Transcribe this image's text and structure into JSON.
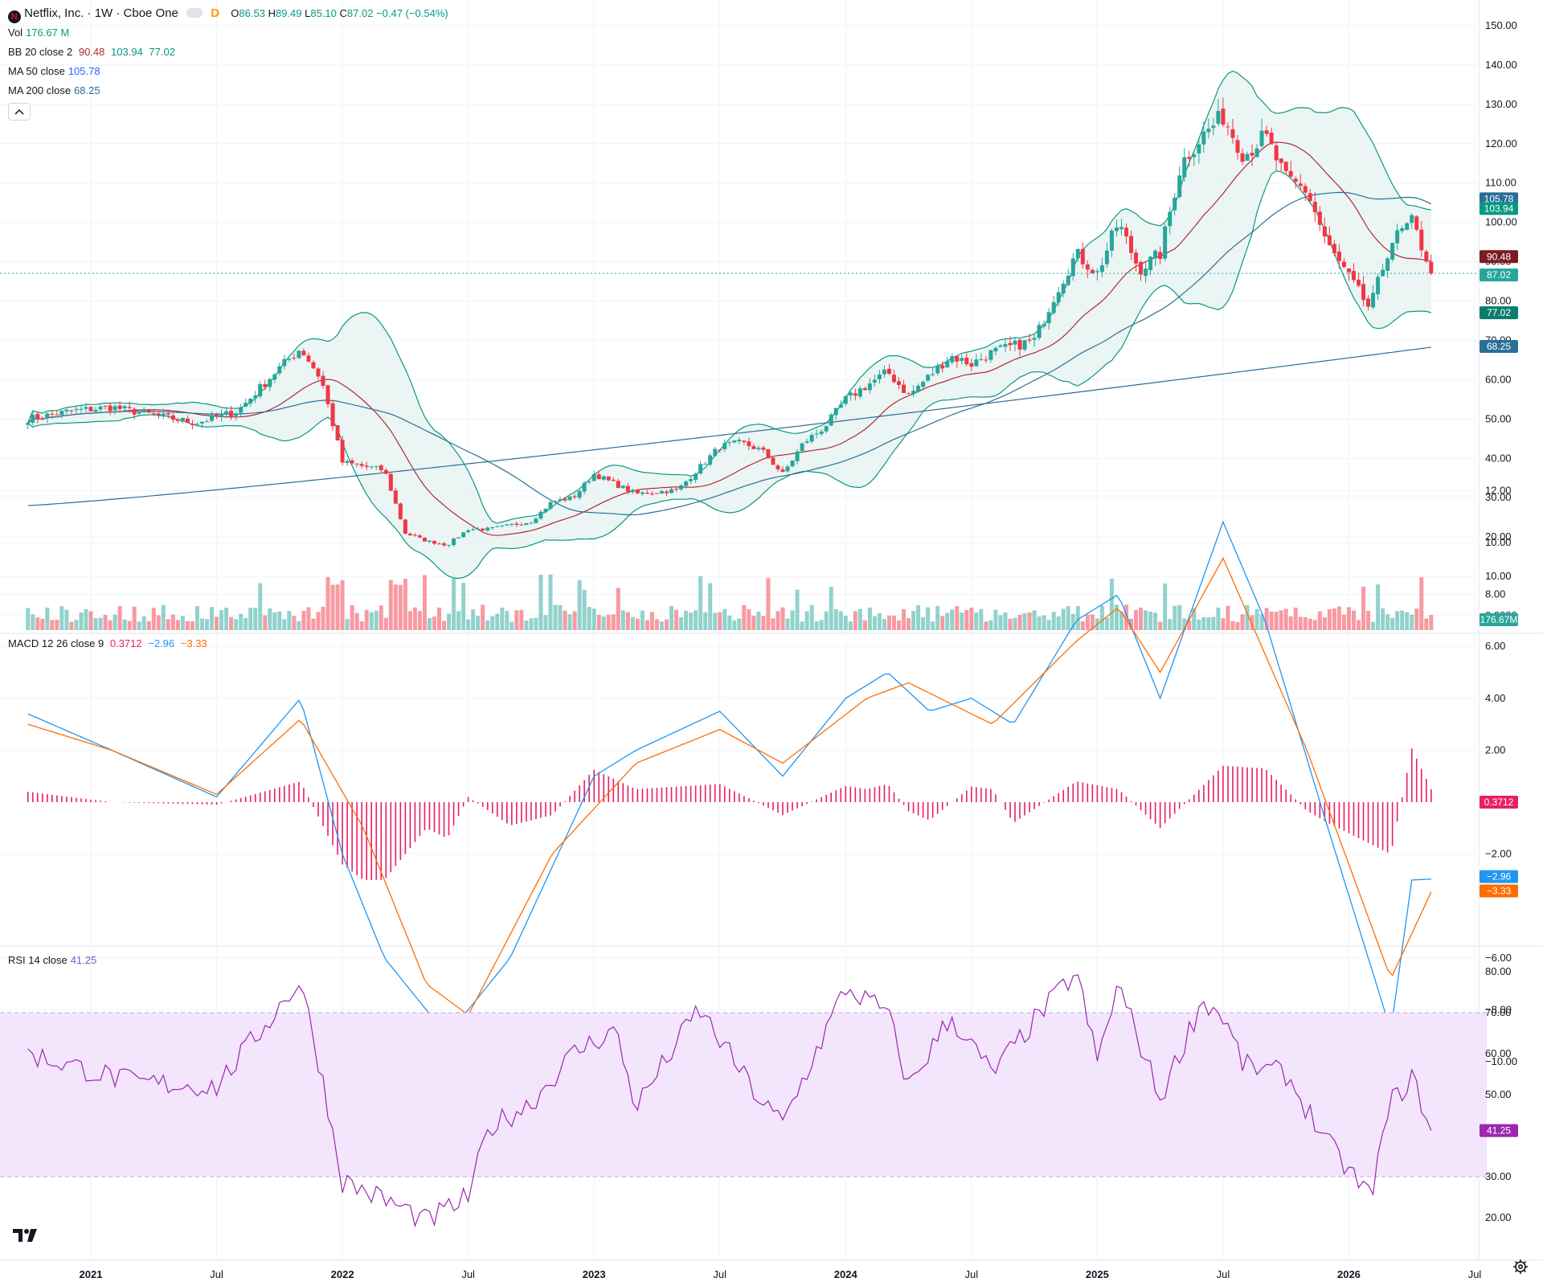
{
  "header": {
    "symbol": "Netflix, Inc. · 1W · Cboe One",
    "logo_letter": "N",
    "d_badge": "D",
    "ohlc": {
      "o_label": "O",
      "o": "86.53",
      "h_label": "H",
      "h": "89.49",
      "l_label": "L",
      "l": "85.10",
      "c_label": "C",
      "c": "87.02",
      "change": "−0.47 (−0.54%)"
    }
  },
  "legend": {
    "vol": {
      "label": "Vol",
      "value": "176.67 M"
    },
    "bb": {
      "label": "BB 20 close 2",
      "basis": "90.48",
      "upper": "103.94",
      "lower": "77.02"
    },
    "ma50": {
      "label": "MA 50 close",
      "value": "105.78"
    },
    "ma200": {
      "label": "MA 200 close",
      "value": "68.25"
    },
    "macd": {
      "label": "MACD 12 26 close 9",
      "hist": "0.3712",
      "macd": "−2.96",
      "signal": "−3.33"
    },
    "rsi": {
      "label": "RSI 14 close",
      "value": "41.25"
    }
  },
  "colors": {
    "up": "#26a69a",
    "down": "#f23645",
    "bb_basis": "#b22833",
    "bb_band": "#089981",
    "bb_fill": "#e6f3f1",
    "ma50": "#2962ff",
    "ma200": "#2a6f97",
    "macd": "#2196f3",
    "signal": "#ff6d00",
    "hist": "#e91e63",
    "rsi": "#7e57c2",
    "rsi_band": "#f3e5fc"
  },
  "axis": {
    "price_ticks": [
      "150.00",
      "140.00",
      "130.00",
      "120.00",
      "110.00",
      "100.00",
      "90.00",
      "80.00",
      "70.00",
      "60.00",
      "50.00",
      "40.00",
      "30.00",
      "20.00",
      "10.00",
      "0.0000"
    ],
    "macd_ticks": [
      "12.00",
      "10.00",
      "8.00",
      "6.00",
      "4.00",
      "2.00",
      "−2.00",
      "−6.00",
      "−8.00",
      "−10.00"
    ],
    "rsi_ticks": [
      "80.00",
      "70.00",
      "60.00",
      "50.00",
      "30.00",
      "20.00"
    ],
    "time_labels": [
      "2021",
      "Jul",
      "2022",
      "Jul",
      "2023",
      "Jul",
      "2024",
      "Jul",
      "2025",
      "Jul",
      "2026",
      "Jul"
    ]
  },
  "tags": {
    "ma50": "105.78",
    "bb_upper": "103.94",
    "bb_basis": "90.48",
    "close": "87.02",
    "bb_lower": "77.02",
    "ma200": "68.25",
    "volume": "176.67M",
    "hist": "0.3712",
    "macd": "−2.96",
    "signal": "−3.33",
    "rsi": "41.25"
  },
  "chart_data": [
    {
      "type": "candlestick",
      "title": "Netflix, Inc. · 1W · Cboe One",
      "ylim": [
        0,
        150
      ],
      "x_range": [
        "2020-10",
        "2026-07"
      ],
      "anchors_close": [
        [
          "2020-10",
          50
        ],
        [
          "2020-12",
          52
        ],
        [
          "2021-02",
          53
        ],
        [
          "2021-04",
          51
        ],
        [
          "2021-06",
          49
        ],
        [
          "2021-08",
          52
        ],
        [
          "2021-10",
          63
        ],
        [
          "2021-11",
          68
        ],
        [
          "2021-12",
          60
        ],
        [
          "2022-01",
          39
        ],
        [
          "2022-03",
          37
        ],
        [
          "2022-04",
          21
        ],
        [
          "2022-05",
          19
        ],
        [
          "2022-06",
          18
        ],
        [
          "2022-07",
          22
        ],
        [
          "2022-08",
          22
        ],
        [
          "2022-10",
          24
        ],
        [
          "2022-11",
          29
        ],
        [
          "2022-12",
          30
        ],
        [
          "2023-01",
          36
        ],
        [
          "2023-03",
          31
        ],
        [
          "2023-05",
          32
        ],
        [
          "2023-07",
          43
        ],
        [
          "2023-08",
          44
        ],
        [
          "2023-09",
          42
        ],
        [
          "2023-10",
          36
        ],
        [
          "2023-11",
          44
        ],
        [
          "2023-12",
          48
        ],
        [
          "2024-01",
          55
        ],
        [
          "2024-03",
          62
        ],
        [
          "2024-04",
          56
        ],
        [
          "2024-06",
          66
        ],
        [
          "2024-07",
          64
        ],
        [
          "2024-08",
          67
        ],
        [
          "2024-10",
          70
        ],
        [
          "2024-11",
          82
        ],
        [
          "2024-12",
          92
        ],
        [
          "2025-01",
          87
        ],
        [
          "2025-02",
          100
        ],
        [
          "2025-03",
          88
        ],
        [
          "2025-04",
          92
        ],
        [
          "2025-05",
          115
        ],
        [
          "2025-06",
          122
        ],
        [
          "2025-07",
          127
        ],
        [
          "2025-08",
          117
        ],
        [
          "2025-09",
          122
        ],
        [
          "2025-10",
          111
        ],
        [
          "2025-11",
          108
        ],
        [
          "2025-12",
          94
        ],
        [
          "2026-01",
          86
        ],
        [
          "2026-02",
          78
        ],
        [
          "2026-03",
          95
        ],
        [
          "2026-04",
          100
        ],
        [
          "2026-05",
          87.02
        ]
      ],
      "last_bar": {
        "open": 86.53,
        "high": 89.49,
        "low": 85.1,
        "close": 87.02
      }
    },
    {
      "type": "bar",
      "title": "Vol",
      "last_value": "176.67M"
    },
    {
      "type": "line",
      "title": "MACD 12 26 close 9",
      "ylim": [
        -10,
        12
      ],
      "series": [
        {
          "name": "MACD",
          "anchors": [
            [
              "2020-10",
              3.4
            ],
            [
              "2021-02",
              2.0
            ],
            [
              "2021-07",
              0.2
            ],
            [
              "2021-11",
              4.0
            ],
            [
              "2022-01",
              -2.0
            ],
            [
              "2022-03",
              -6.0
            ],
            [
              "2022-06",
              -9.0
            ],
            [
              "2022-09",
              -6.0
            ],
            [
              "2023-01",
              1.0
            ],
            [
              "2023-03",
              2.0
            ],
            [
              "2023-07",
              3.5
            ],
            [
              "2023-10",
              1.0
            ],
            [
              "2024-01",
              4.0
            ],
            [
              "2024-03",
              5.0
            ],
            [
              "2024-05",
              3.5
            ],
            [
              "2024-07",
              4.0
            ],
            [
              "2024-09",
              3.0
            ],
            [
              "2024-12",
              7.0
            ],
            [
              "2025-02",
              8.0
            ],
            [
              "2025-04",
              4.0
            ],
            [
              "2025-07",
              10.8
            ],
            [
              "2025-09",
              7.0
            ],
            [
              "2025-12",
              -1.0
            ],
            [
              "2026-03",
              -8.8
            ],
            [
              "2026-04",
              -3.0
            ],
            [
              "2026-05",
              -2.96
            ]
          ]
        },
        {
          "name": "Signal",
          "anchors": [
            [
              "2020-10",
              3.0
            ],
            [
              "2021-02",
              2.0
            ],
            [
              "2021-07",
              0.3
            ],
            [
              "2021-11",
              3.2
            ],
            [
              "2022-02",
              -1.0
            ],
            [
              "2022-05",
              -7.0
            ],
            [
              "2022-07",
              -8.2
            ],
            [
              "2022-11",
              -2.0
            ],
            [
              "2023-03",
              1.5
            ],
            [
              "2023-07",
              2.8
            ],
            [
              "2023-10",
              1.5
            ],
            [
              "2024-02",
              4.0
            ],
            [
              "2024-04",
              4.6
            ],
            [
              "2024-08",
              3.0
            ],
            [
              "2024-12",
              6.2
            ],
            [
              "2025-02",
              7.5
            ],
            [
              "2025-04",
              5.0
            ],
            [
              "2025-07",
              9.4
            ],
            [
              "2025-11",
              2.0
            ],
            [
              "2026-03",
              -6.8
            ],
            [
              "2026-05",
              -3.33
            ]
          ]
        }
      ],
      "histogram_last": 0.3712
    },
    {
      "type": "line",
      "title": "RSI 14 close",
      "ylim": [
        15,
        85
      ],
      "band": [
        30,
        70
      ],
      "series": [
        {
          "name": "RSI",
          "anchors": [
            [
              "2020-10",
              60
            ],
            [
              "2021-03",
              53
            ],
            [
              "2021-07",
              52
            ],
            [
              "2021-11",
              78
            ],
            [
              "2021-12",
              55
            ],
            [
              "2022-01",
              29
            ],
            [
              "2022-04",
              22
            ],
            [
              "2022-05",
              19
            ],
            [
              "2022-07",
              25
            ],
            [
              "2022-08",
              42
            ],
            [
              "2022-10",
              48
            ],
            [
              "2022-12",
              60
            ],
            [
              "2023-02",
              66
            ],
            [
              "2023-03",
              47
            ],
            [
              "2023-06",
              71
            ],
            [
              "2023-09",
              48
            ],
            [
              "2023-10",
              43
            ],
            [
              "2023-12",
              65
            ],
            [
              "2024-01",
              76
            ],
            [
              "2024-03",
              70
            ],
            [
              "2024-04",
              52
            ],
            [
              "2024-06",
              69
            ],
            [
              "2024-08",
              55
            ],
            [
              "2024-10",
              68
            ],
            [
              "2024-12",
              80
            ],
            [
              "2025-01",
              58
            ],
            [
              "2025-02",
              77
            ],
            [
              "2025-04",
              49
            ],
            [
              "2025-06",
              73
            ],
            [
              "2025-07",
              69
            ],
            [
              "2025-08",
              57
            ],
            [
              "2025-10",
              55
            ],
            [
              "2025-12",
              38
            ],
            [
              "2026-02",
              25
            ],
            [
              "2026-03",
              48
            ],
            [
              "2026-04",
              54
            ],
            [
              "2026-05",
              41.25
            ]
          ]
        }
      ]
    }
  ]
}
